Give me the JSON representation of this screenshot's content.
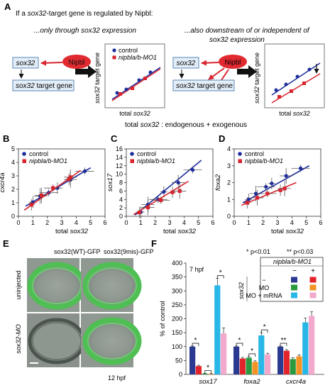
{
  "panel_a": {
    "letter": "A",
    "intro_prefix": "If a ",
    "intro_gene": "sox32",
    "intro_suffix": "-target gene is regulated by Nipbl:",
    "left_caption_prefix": "...only through ",
    "left_caption_gene": "sox32",
    "left_caption_suffix": " expression",
    "right_caption_line1": "...also downstream of or independent of",
    "right_caption_gene": "sox32",
    "right_caption_suffix": " expression",
    "node_sox32": "sox32",
    "node_nipbl": "Nipbl",
    "node_target_gene": "sox32",
    "node_target_suffix": " target gene",
    "legend_control": "control",
    "legend_mo": "nipbla/b-MO1",
    "y_axis_line1": "sox32",
    "y_axis_line2": " target gene",
    "x_axis_prefix": "total ",
    "x_axis_gene": "sox32",
    "footer_prefix": "total ",
    "footer_gene": "sox32",
    "footer_suffix": " : endogenous + exogenous"
  },
  "panel_labels": {
    "b": "B",
    "c": "C",
    "d": "D",
    "e": "E",
    "f": "F"
  },
  "colors": {
    "control": "#1e2d9c",
    "mo": "#d9242e",
    "gfp": "#58c95a"
  },
  "panel_e": {
    "col1": "sox32(WT)-GFP",
    "col2": "sox32(9mis)-GFP",
    "row1": "uninjected",
    "row2": "sox32-MO",
    "stage": "12 hpf"
  },
  "chart_data": [
    {
      "type": "scatter",
      "panel": "B",
      "ylabel": "cxcr4a",
      "xlabel_prefix": "total ",
      "xlabel_gene": "sox32",
      "xlim": [
        0,
        6
      ],
      "ylim": [
        0,
        5
      ],
      "x_ticks": [
        "0",
        "1",
        "2",
        "3",
        "4",
        "5",
        "6"
      ],
      "y_ticks": [
        "0",
        "1",
        "2",
        "3",
        "4",
        "5"
      ],
      "legend": [
        "control",
        "nipbla/b-MO1"
      ],
      "series": [
        {
          "name": "control",
          "points": [
            [
              1.0,
              1.05
            ],
            [
              1.5,
              1.5
            ],
            [
              2.1,
              1.75
            ],
            [
              2.7,
              2.1
            ],
            [
              3.6,
              2.7
            ],
            [
              4.6,
              3.35
            ]
          ],
          "fit": [
            [
              0.5,
              0.75
            ],
            [
              5.0,
              3.6
            ]
          ]
        },
        {
          "name": "nipbla/b-MO1",
          "points": [
            [
              0.9,
              0.85
            ],
            [
              1.6,
              1.55
            ],
            [
              2.4,
              2.1
            ],
            [
              3.5,
              2.75
            ],
            [
              3.6,
              2.9
            ]
          ],
          "fit": [
            [
              0.4,
              0.45
            ],
            [
              4.3,
              3.4
            ]
          ]
        }
      ]
    },
    {
      "type": "scatter",
      "panel": "C",
      "ylabel": "sox17",
      "xlabel_prefix": "total ",
      "xlabel_gene": "sox32",
      "xlim": [
        0,
        6
      ],
      "ylim": [
        0,
        16
      ],
      "x_ticks": [
        "0",
        "1",
        "2",
        "3",
        "4",
        "5",
        "6"
      ],
      "y_ticks": [
        "0",
        "2",
        "4",
        "6",
        "8",
        "10",
        "12",
        "14",
        "16"
      ],
      "legend": [
        "control",
        "nipbla/b-MO1"
      ],
      "series": [
        {
          "name": "control",
          "points": [
            [
              1.0,
              1.0
            ],
            [
              1.5,
              2.8
            ],
            [
              2.2,
              4.0
            ],
            [
              2.6,
              5.8
            ],
            [
              3.6,
              8.0
            ],
            [
              4.6,
              11.0
            ]
          ],
          "fit": [
            [
              0.6,
              0.3
            ],
            [
              5.2,
              13.3
            ]
          ]
        },
        {
          "name": "nipbla/b-MO1",
          "points": [
            [
              0.9,
              0.9
            ],
            [
              1.5,
              2.1
            ],
            [
              2.4,
              3.8
            ],
            [
              3.2,
              5.7
            ],
            [
              3.7,
              6.0
            ]
          ],
          "fit": [
            [
              0.5,
              0.4
            ],
            [
              4.3,
              8.3
            ]
          ]
        }
      ]
    },
    {
      "type": "scatter",
      "panel": "D",
      "ylabel": "foxa2",
      "xlabel_prefix": "total ",
      "xlabel_gene": "sox32",
      "xlim": [
        0,
        6
      ],
      "ylim": [
        0,
        4
      ],
      "x_ticks": [
        "0",
        "1",
        "2",
        "3",
        "4",
        "5",
        "6"
      ],
      "y_ticks": [
        "0",
        "1",
        "2",
        "3",
        "4"
      ],
      "legend": [
        "control",
        "nipbla/b-MO1"
      ],
      "series": [
        {
          "name": "control",
          "points": [
            [
              1.0,
              1.0
            ],
            [
              1.5,
              1.35
            ],
            [
              2.2,
              1.75
            ],
            [
              2.6,
              1.95
            ],
            [
              3.6,
              2.4
            ],
            [
              4.6,
              2.85
            ]
          ],
          "fit": [
            [
              0.6,
              0.8
            ],
            [
              5.2,
              3.0
            ]
          ]
        },
        {
          "name": "nipbla/b-MO1",
          "points": [
            [
              0.9,
              0.8
            ],
            [
              1.6,
              1.1
            ],
            [
              2.3,
              1.35
            ],
            [
              3.2,
              1.55
            ],
            [
              3.5,
              1.65
            ]
          ],
          "fit": [
            [
              0.5,
              0.65
            ],
            [
              4.3,
              2.0
            ]
          ]
        }
      ]
    },
    {
      "type": "bar",
      "panel": "F",
      "ylabel": "% of control",
      "title": "7 hpf",
      "ylim": [
        0,
        400
      ],
      "y_ticks": [
        "0",
        "50",
        "100",
        "150",
        "200",
        "250",
        "300",
        "350",
        "400"
      ],
      "categories": [
        "sox17",
        "foxa2",
        "cxcr4a"
      ],
      "significance": {
        "one": "* p<0.01",
        "two": "** p<0.03"
      },
      "legend": {
        "morpholino_header": "nipbla/b-MO1",
        "minus": "−",
        "plus": "+",
        "row_group_label": "sox32",
        "row_dash": "−",
        "row_mo": "MO",
        "row_mo_mrna": "MO + mRNA"
      },
      "series": [
        {
          "name": "sox32 − / nipbla/b-MO1 −",
          "color": "#2b3990",
          "values": [
            100,
            100,
            100
          ],
          "errors": [
            2,
            2,
            2
          ]
        },
        {
          "name": "sox32 − / nipbla/b-MO1 +",
          "color": "#e3252b",
          "values": [
            30,
            57,
            85
          ],
          "errors": [
            3,
            4,
            4
          ]
        },
        {
          "name": "sox32 MO / nipbla/b-MO1 −",
          "color": "#2a9a3f",
          "values": [
            3,
            60,
            55
          ],
          "errors": [
            1,
            4,
            5
          ]
        },
        {
          "name": "sox32 MO / nipbla/b-MO1 +",
          "color": "#f39325",
          "values": [
            2,
            45,
            65
          ],
          "errors": [
            1,
            4,
            5
          ]
        },
        {
          "name": "sox32 MO + mRNA / nipbla/b-MO1 −",
          "color": "#28b7e6",
          "values": [
            320,
            140,
            187
          ],
          "errors": [
            25,
            10,
            15
          ]
        },
        {
          "name": "sox32 MO + mRNA / nipbla/b-MO1 +",
          "color": "#f2a9cb",
          "values": [
            147,
            72,
            210
          ],
          "errors": [
            20,
            4,
            15
          ]
        }
      ],
      "brackets": [
        {
          "category": 0,
          "from": 0,
          "to": 1,
          "label": "*"
        },
        {
          "category": 0,
          "from": 2,
          "to": 3,
          "label": "*"
        },
        {
          "category": 0,
          "from": 4,
          "to": 5,
          "label": "*"
        },
        {
          "category": 1,
          "from": 0,
          "to": 1,
          "label": "*"
        },
        {
          "category": 1,
          "from": 2,
          "to": 3,
          "label": "*"
        },
        {
          "category": 1,
          "from": 4,
          "to": 5,
          "label": "*"
        },
        {
          "category": 2,
          "from": 0,
          "to": 1,
          "label": "**"
        }
      ]
    }
  ]
}
